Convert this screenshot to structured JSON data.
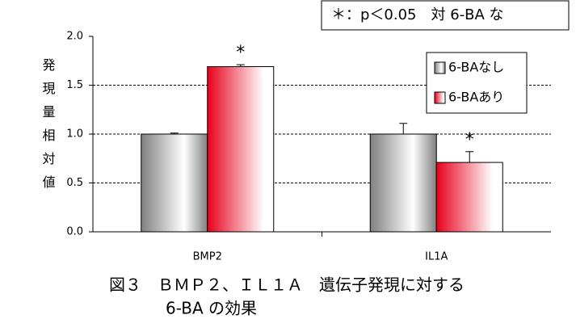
{
  "chart_data": {
    "type": "bar",
    "note": "＊：p＜0.05　対 6-BA な",
    "y_label": "発現量相対値",
    "caption_lines": [
      "図３　ＢＭＰ２、ＩＬ１Ａ　遺伝子発現に対する",
      "6-BA の効果"
    ],
    "categories": [
      "BMP2",
      "IL1A"
    ],
    "series": [
      {
        "name": "6-BAなし",
        "color": "#808080",
        "values": [
          1.0,
          1.0
        ],
        "errors": [
          0.01,
          0.11
        ]
      },
      {
        "name": "6-BAあり",
        "color": "#e8001c",
        "values": [
          1.69,
          0.71
        ],
        "errors": [
          0.02,
          0.11
        ],
        "labels": [
          "*",
          "*"
        ]
      }
    ],
    "ylim": [
      0,
      2
    ],
    "yticks": [
      {
        "value": 0,
        "label": "0.0"
      },
      0.5,
      {
        "value": 1,
        "label": "1.0"
      },
      1.5,
      {
        "value": 2,
        "label": "2.0"
      }
    ],
    "grid": true,
    "legend": "upper right"
  }
}
